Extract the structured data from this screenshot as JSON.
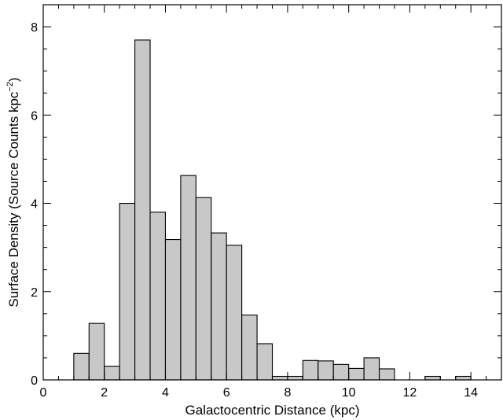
{
  "chart_data": {
    "type": "bar",
    "title": "",
    "xlabel": "Galactocentric Distance (kpc)",
    "ylabel_main": "Surface Density (Source Counts kpc",
    "ylabel_exp": "−2",
    "ylabel_close": ")",
    "xlim": [
      0,
      15
    ],
    "ylim": [
      0,
      8.5
    ],
    "bin_width": 0.5,
    "bin_starts": [
      1.0,
      1.5,
      2.0,
      2.5,
      3.0,
      3.5,
      4.0,
      4.5,
      5.0,
      5.5,
      6.0,
      6.5,
      7.0,
      7.5,
      8.0,
      8.5,
      9.0,
      9.5,
      10.0,
      10.5,
      11.0,
      11.5,
      12.0,
      12.5,
      13.0,
      13.5
    ],
    "values": [
      0.6,
      1.28,
      0.31,
      4.0,
      7.7,
      3.8,
      3.18,
      4.63,
      4.13,
      3.33,
      3.05,
      1.47,
      0.82,
      0.08,
      0.08,
      0.44,
      0.43,
      0.35,
      0.26,
      0.5,
      0.25,
      0.0,
      0.0,
      0.08,
      0.0,
      0.08
    ],
    "x_ticks": [
      "0",
      "2",
      "4",
      "6",
      "8",
      "10",
      "12",
      "14"
    ],
    "x_tick_values": [
      0,
      2,
      4,
      6,
      8,
      10,
      12,
      14
    ],
    "y_ticks": [
      "0",
      "2",
      "4",
      "6",
      "8"
    ],
    "y_tick_values": [
      0,
      2,
      4,
      6,
      8
    ],
    "x_minor_step": 0.5,
    "y_minor_step": 0.5,
    "grid": false,
    "bar_color": "#c8c8c8",
    "edge_color": "#000000"
  }
}
